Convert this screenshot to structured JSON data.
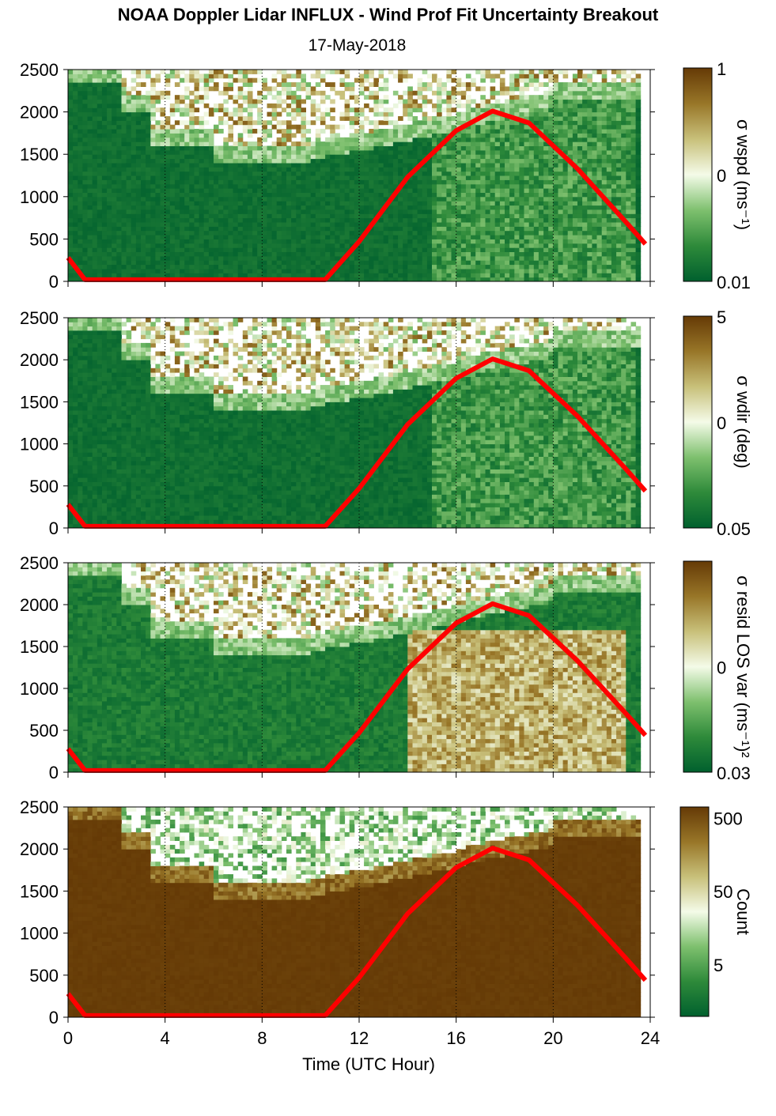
{
  "chart_data": {
    "type": "heatmap",
    "title": "NOAA Doppler Lidar INFLUX - Wind Prof Fit Uncertainty Breakout",
    "subtitle": "17-May-2018",
    "xlabel": "Time (UTC Hour)",
    "xlim": [
      0,
      24
    ],
    "xticks": [
      "0",
      "4",
      "8",
      "12",
      "16",
      "20",
      "24"
    ],
    "xtick_values": [
      0,
      4,
      8,
      12,
      16,
      20,
      24
    ],
    "vertical_gridlines": [
      4,
      8,
      12,
      16,
      20
    ],
    "ylim": [
      0,
      2500
    ],
    "yticks": [
      "0",
      "500",
      "1000",
      "1500",
      "2000",
      "2500"
    ],
    "ytick_values": [
      0,
      500,
      1000,
      1500,
      2000,
      2500
    ],
    "colormap": [
      "#00602e",
      "#2e8a3a",
      "#7ec06e",
      "#f4fbe8",
      "#c8c07a",
      "#987628",
      "#653a06"
    ],
    "panels": [
      {
        "colorbar_label": "σ wspd (ms⁻¹)",
        "colorbar_ticks": [
          "1",
          "0",
          "0.01"
        ],
        "tick_positions": [
          1,
          0.5,
          0
        ],
        "log_scale": true
      },
      {
        "colorbar_label": "σ wdir (deg)",
        "colorbar_ticks": [
          "5",
          "0",
          "0.05"
        ],
        "tick_positions": [
          1,
          0.5,
          0
        ],
        "log_scale": true
      },
      {
        "colorbar_label": "σ resid LOS var (ms⁻¹)²",
        "colorbar_ticks": [
          "0",
          "0.03"
        ],
        "tick_positions": [
          0.5,
          0
        ],
        "log_scale": true
      },
      {
        "colorbar_label": "Count",
        "colorbar_ticks": [
          "500",
          "50",
          "5"
        ],
        "tick_positions": [
          0.95,
          0.6,
          0.25
        ],
        "log_scale": true
      }
    ],
    "overlay_curve": {
      "color": "#ff0000",
      "description_points": [
        {
          "x": 0.0,
          "y": 280
        },
        {
          "x": 0.7,
          "y": 20
        },
        {
          "x": 10.6,
          "y": 20
        },
        {
          "x": 12,
          "y": 470
        },
        {
          "x": 14,
          "y": 1230
        },
        {
          "x": 16,
          "y": 1780
        },
        {
          "x": 17.5,
          "y": 2010
        },
        {
          "x": 19,
          "y": 1870
        },
        {
          "x": 21,
          "y": 1330
        },
        {
          "x": 23,
          "y": 700
        },
        {
          "x": 23.8,
          "y": 440
        }
      ]
    }
  }
}
